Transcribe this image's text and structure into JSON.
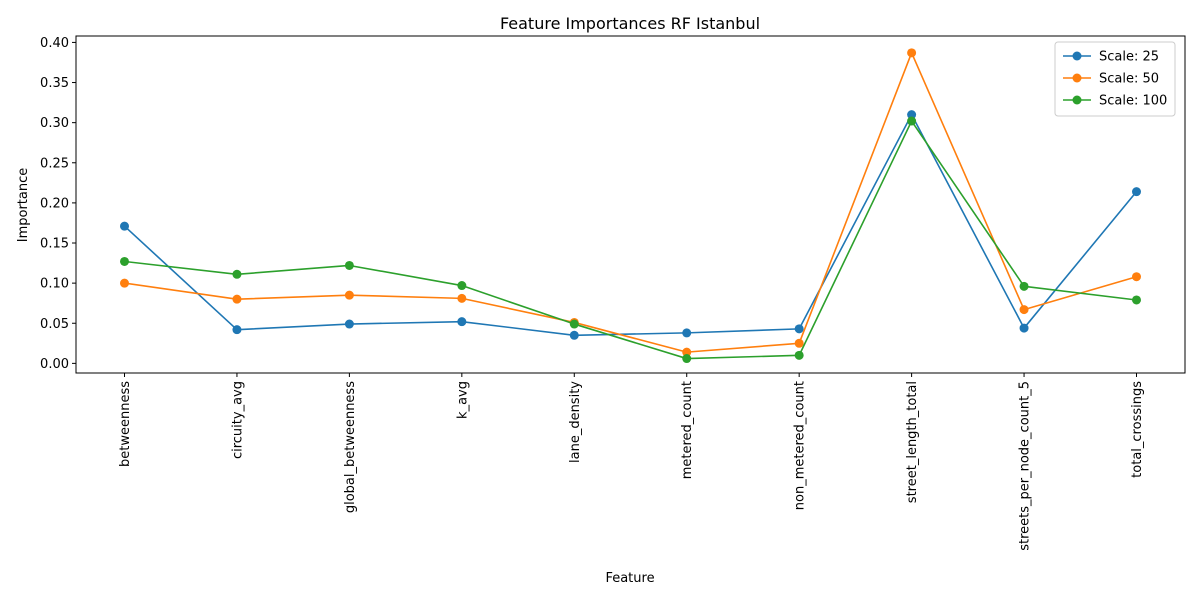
{
  "chart_data": {
    "type": "line",
    "title": "Feature Importances RF Istanbul",
    "xlabel": "Feature",
    "ylabel": "Importance",
    "categories": [
      "betweenness",
      "circuity_avg",
      "global_betweenness",
      "k_avg",
      "lane_density",
      "metered_count",
      "non_metered_count",
      "street_length_total",
      "streets_per_node_count_5",
      "total_crossings"
    ],
    "ylim": [
      -0.012,
      0.408
    ],
    "yticks": [
      "0.00",
      "0.05",
      "0.10",
      "0.15",
      "0.20",
      "0.25",
      "0.30",
      "0.35",
      "0.40"
    ],
    "grid": false,
    "legend_position": "top-right",
    "series": [
      {
        "name": "Scale: 25",
        "color": "#1f77b4",
        "values": [
          0.171,
          0.042,
          0.049,
          0.052,
          0.035,
          0.038,
          0.043,
          0.31,
          0.044,
          0.214
        ]
      },
      {
        "name": "Scale: 50",
        "color": "#ff7f0e",
        "values": [
          0.1,
          0.08,
          0.085,
          0.081,
          0.051,
          0.014,
          0.025,
          0.387,
          0.067,
          0.108
        ]
      },
      {
        "name": "Scale: 100",
        "color": "#2ca02c",
        "values": [
          0.127,
          0.111,
          0.122,
          0.097,
          0.049,
          0.006,
          0.01,
          0.302,
          0.096,
          0.079
        ]
      }
    ]
  }
}
